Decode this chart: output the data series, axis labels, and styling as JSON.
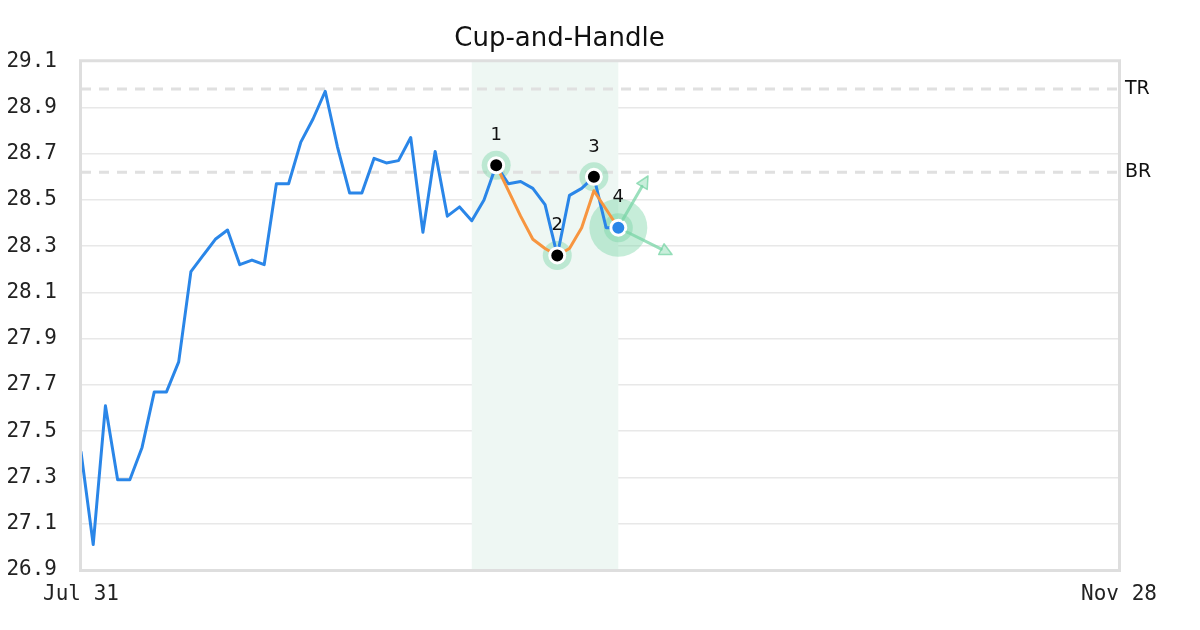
{
  "chart_data": {
    "type": "line",
    "title": "Cup-and-Handle",
    "categories": [
      "Jul 31",
      null,
      null,
      null,
      null,
      null,
      null,
      null,
      null,
      null,
      null,
      null,
      null,
      null,
      null,
      null,
      null,
      null,
      null,
      null,
      null,
      null,
      null,
      null,
      null,
      null,
      null,
      null,
      null,
      null,
      null,
      null,
      null,
      null,
      null,
      null,
      null,
      null,
      null,
      null,
      null,
      null,
      null,
      null,
      null,
      null,
      null,
      null,
      null,
      null,
      null,
      null,
      null,
      null,
      null,
      null,
      null,
      null,
      null,
      null,
      null,
      null,
      null,
      null,
      null,
      null,
      null,
      null,
      null,
      null,
      null,
      null,
      null,
      null,
      null,
      null,
      null,
      null,
      null,
      null,
      null,
      null,
      null,
      null,
      null,
      "Nov 28"
    ],
    "ylim": [
      26.9,
      29.1
    ],
    "yticks": [
      26.9,
      27.1,
      27.3,
      27.5,
      27.7,
      27.9,
      28.1,
      28.3,
      28.5,
      28.7,
      28.9,
      29.1
    ],
    "grid": "y",
    "series": [
      {
        "color": "#2a86e8",
        "marker": "none",
        "values": [
          27.41,
          27.01,
          27.61,
          27.29,
          27.29,
          27.43,
          27.67,
          27.67,
          27.8,
          28.19,
          28.26,
          28.33,
          28.37,
          28.22,
          28.24,
          28.22,
          28.57,
          28.57,
          28.75,
          28.85,
          28.97,
          28.73,
          28.53,
          28.53,
          28.68,
          28.66,
          28.67,
          28.77,
          28.36,
          28.71,
          28.43,
          28.47,
          28.41,
          28.5,
          28.65,
          28.57,
          28.58,
          28.55,
          28.48,
          28.26,
          28.52,
          28.55,
          28.6,
          28.38,
          28.38,
          null,
          null,
          null,
          null,
          null,
          null,
          null,
          null,
          null,
          null,
          null,
          null,
          null,
          null,
          null,
          null,
          null,
          null,
          null,
          null,
          null,
          null,
          null,
          null,
          null,
          null,
          null,
          null,
          null,
          null,
          null,
          null,
          null,
          null,
          null,
          null,
          null,
          null,
          null,
          null,
          null
        ]
      },
      {
        "type": "line",
        "color": "#f7953f",
        "marker": "none",
        "values": [
          null,
          null,
          null,
          null,
          null,
          null,
          null,
          null,
          null,
          null,
          null,
          null,
          null,
          null,
          null,
          null,
          null,
          null,
          null,
          null,
          null,
          null,
          null,
          null,
          null,
          null,
          null,
          null,
          null,
          null,
          null,
          null,
          null,
          null,
          28.65,
          28.54,
          28.43,
          28.33,
          28.29,
          28.26,
          28.29,
          28.38,
          28.54,
          28.46,
          28.38,
          null,
          null,
          null,
          null,
          null,
          null,
          null,
          null,
          null,
          null,
          null,
          null,
          null,
          null,
          null,
          null,
          null,
          null,
          null,
          null,
          null,
          null,
          null,
          null,
          null,
          null,
          null,
          null,
          null,
          null,
          null,
          null,
          null,
          null,
          null,
          null,
          null,
          null,
          null,
          null,
          null
        ]
      },
      {
        "type": "scatter",
        "marker": "circle",
        "values": [
          null,
          null,
          null,
          null,
          null,
          null,
          null,
          null,
          null,
          null,
          null,
          null,
          null,
          null,
          null,
          null,
          null,
          null,
          null,
          null,
          null,
          null,
          null,
          null,
          null,
          null,
          null,
          null,
          null,
          null,
          null,
          null,
          null,
          null,
          28.65,
          null,
          null,
          null,
          null,
          28.26,
          null,
          null,
          28.6,
          null,
          28.38,
          null,
          null,
          null,
          null,
          null,
          null,
          null,
          null,
          null,
          null,
          null,
          null,
          null,
          null,
          null,
          null,
          null,
          null,
          null,
          null,
          null,
          null,
          null,
          null,
          null,
          null,
          null,
          null,
          null,
          null,
          null,
          null,
          null,
          null,
          null,
          null,
          null,
          null,
          null,
          null,
          null
        ],
        "colors": [
          null,
          null,
          null,
          null,
          null,
          null,
          null,
          null,
          null,
          null,
          null,
          null,
          null,
          null,
          null,
          null,
          null,
          null,
          null,
          null,
          null,
          null,
          null,
          null,
          null,
          null,
          null,
          null,
          null,
          null,
          null,
          null,
          null,
          null,
          "#000000",
          null,
          null,
          null,
          null,
          "#000000",
          null,
          null,
          "#000000",
          null,
          "#2a86e8",
          null,
          null,
          null,
          null,
          null,
          null,
          null,
          null,
          null,
          null,
          null,
          null,
          null,
          null,
          null,
          null,
          null,
          null,
          null,
          null,
          null,
          null,
          null,
          null,
          null,
          null,
          null,
          null,
          null,
          null,
          null,
          null,
          null,
          null,
          null,
          null,
          null,
          null,
          null,
          null,
          null
        ]
      }
    ],
    "ref_lines": [
      {
        "axis": "y",
        "value": 28.98,
        "label": "TR",
        "color": "#e0e0e0",
        "line_style": "dashed"
      },
      {
        "axis": "y",
        "value": 28.62,
        "label": "BR",
        "color": "#e0e0e0",
        "line_style": "dashed"
      }
    ],
    "annotations": [
      {
        "text": "1",
        "y": 28.65
      },
      {
        "text": "2",
        "y": 28.26
      },
      {
        "text": "3",
        "y": 28.6
      },
      {
        "text": "4",
        "y": 28.38
      }
    ]
  }
}
